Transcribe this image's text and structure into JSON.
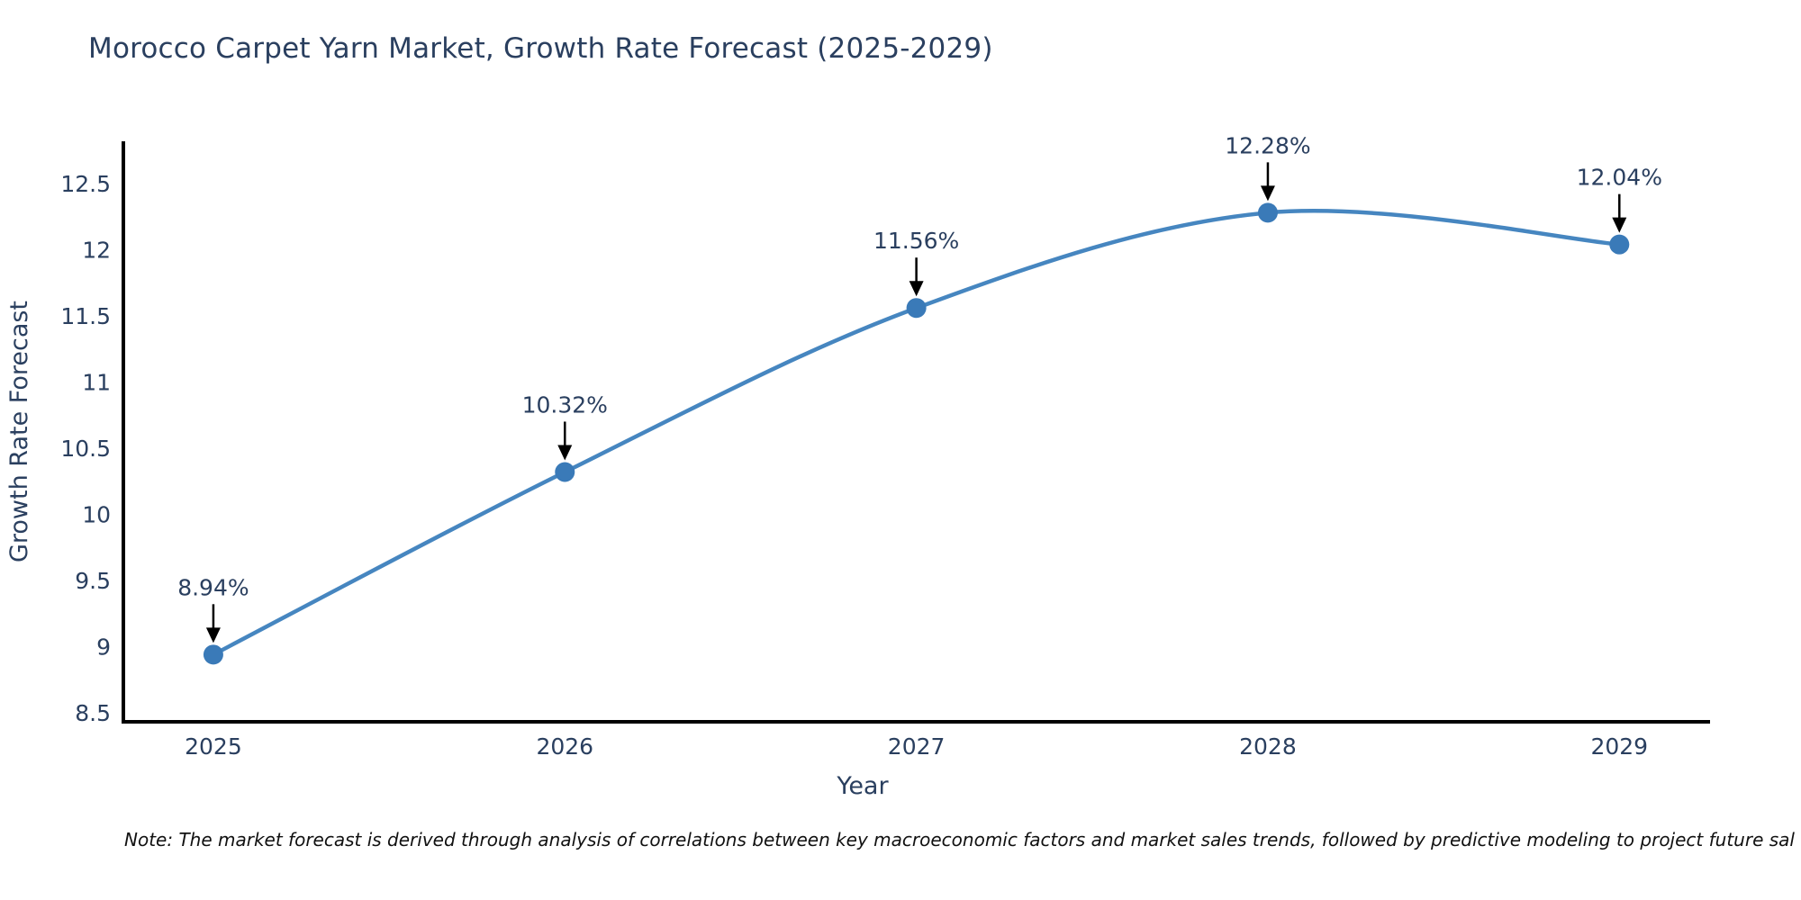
{
  "title": "Morocco Carpet Yarn Market, Growth Rate Forecast (2025-2029)",
  "note": "Note: The market forecast is derived through analysis of correlations between key macroeconomic factors and market sales trends, followed by predictive modeling to project future sal",
  "colors": {
    "title_text": "#2a3f5f",
    "tick_text": "#2a3f5f",
    "annotation_text": "#2a3f5f",
    "note_text": "#111111",
    "axis_line": "#000000",
    "line": "#4686c0",
    "marker": "#3a7ab8",
    "arrow": "#000000",
    "background": "#ffffff"
  },
  "chart_data": {
    "type": "line",
    "line_shape": "spline",
    "x": [
      2025,
      2026,
      2027,
      2028,
      2029
    ],
    "values": [
      8.94,
      10.32,
      11.56,
      12.28,
      12.04
    ],
    "point_labels": [
      "8.94%",
      "10.32%",
      "11.56%",
      "12.28%",
      "12.04%"
    ],
    "title": "Morocco Carpet Yarn Market, Growth Rate Forecast (2025-2029)",
    "xlabel": "Year",
    "ylabel": "Growth Rate Forecast",
    "xticks": [
      2025,
      2026,
      2027,
      2028,
      2029
    ],
    "yticks": [
      8.5,
      9,
      9.5,
      10,
      10.5,
      11,
      11.5,
      12,
      12.5
    ],
    "xlim": [
      2024.744,
      2029.258
    ],
    "ylim": [
      8.432,
      12.82
    ],
    "grid": false,
    "legend": "none",
    "markers": true,
    "annotations_arrow": true
  }
}
